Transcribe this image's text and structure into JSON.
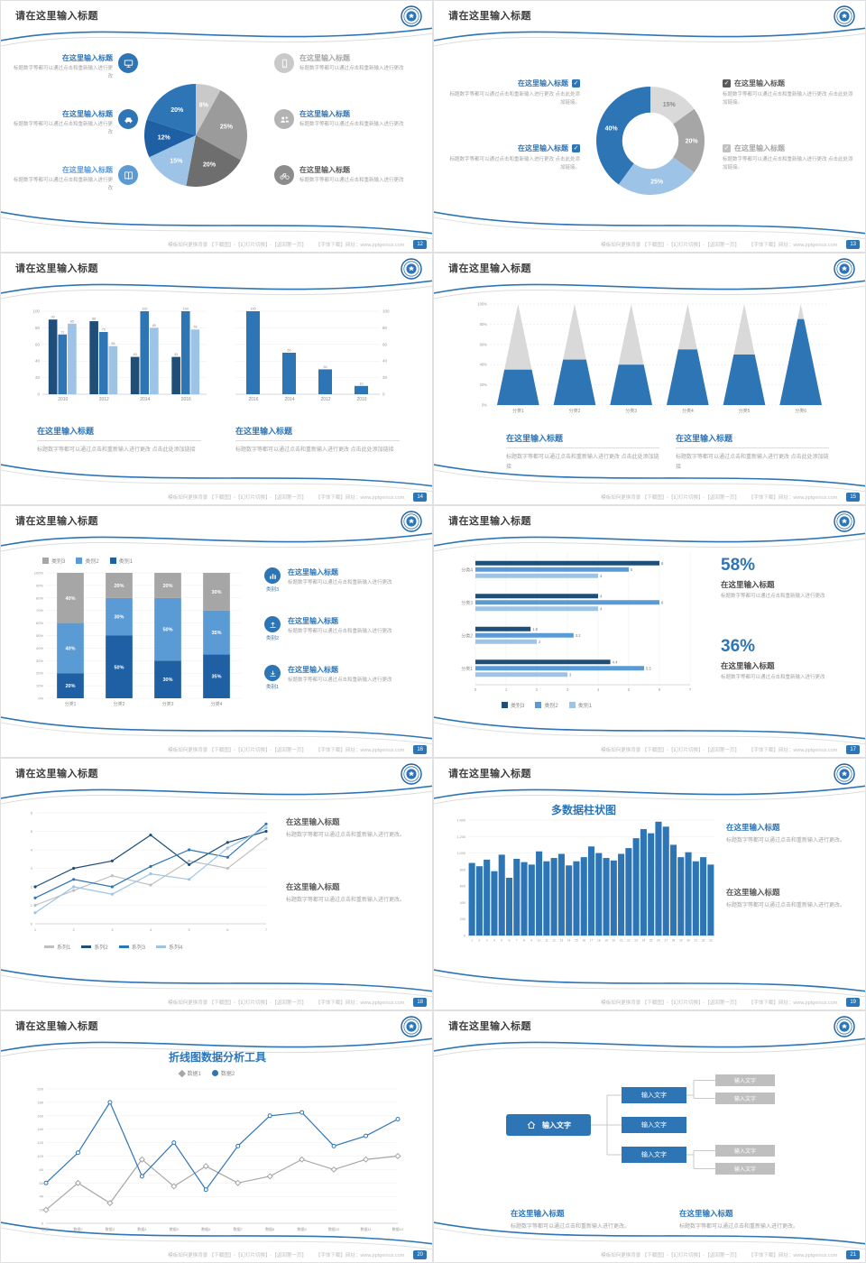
{
  "icons": {
    "check": "✓"
  },
  "footer": {
    "left": "模板如何更换背景 【下载图】-【幻灯片切换】-【返回第一页】",
    "right": "【字体下载】网址：www.pptgenius.com"
  },
  "slides": [
    {
      "page": "12",
      "title": "请在这里输入标题",
      "left_items": [
        {
          "heading": "在这里输入标题",
          "heading_color": "#2e75b6",
          "body": "标题数字等都可以通过点击和重新输入进行更改",
          "icon": "monitor",
          "icon_bg": "#2e75b6"
        },
        {
          "heading": "在这里输入标题",
          "heading_color": "#2e75b6",
          "body": "标题数字等都可以通过点击和重新输入进行更改",
          "icon": "car",
          "icon_bg": "#2e75b6"
        },
        {
          "heading": "在这里输入标题",
          "heading_color": "#5b9bd5",
          "body": "标题数字等都可以通过点击和重新输入进行更改",
          "icon": "book",
          "icon_bg": "#5b9bd5"
        }
      ],
      "right_items": [
        {
          "heading": "在这里输入标题",
          "heading_color": "#a6a6a6",
          "body": "标题数字等都可以通过点击和重新输入进行更改",
          "icon": "phone",
          "icon_bg": "#c9c9c9"
        },
        {
          "heading": "在这里输入标题",
          "heading_color": "#2e75b6",
          "body": "标题数字等都可以通过点击和重新输入进行更改",
          "icon": "people",
          "icon_bg": "#b3b3b3"
        },
        {
          "heading": "在这里输入标题",
          "heading_color": "#595959",
          "body": "标题数字等都可以通过点击和重新输入进行更改",
          "icon": "bike",
          "icon_bg": "#8c8c8c"
        }
      ],
      "chart_data": {
        "type": "pie",
        "values": [
          8,
          25,
          20,
          15,
          12,
          20
        ],
        "colors": [
          "#c9c9c9",
          "#9b9b9b",
          "#6e6e6e",
          "#9dc3e6",
          "#1f5fa3",
          "#2e75b6"
        ],
        "label_colors": [
          "#fff",
          "#fff",
          "#fff",
          "#fff",
          "#fff",
          "#fff"
        ]
      }
    },
    {
      "page": "13",
      "title": "请在这里输入标题",
      "left_items": [
        {
          "heading": "在这里输入标题",
          "heading_color": "#2e75b6",
          "check_color": "#2e75b6",
          "body": "标题数字等都可以通过点击和重新输入进行更改 点击此处添加链接。"
        },
        {
          "heading": "在这里输入标题",
          "heading_color": "#2e75b6",
          "check_color": "#2e75b6",
          "body": "标题数字等都可以通过点击和重新输入进行更改 点击此处添加链接。"
        }
      ],
      "right_items": [
        {
          "heading": "在这里输入标题",
          "heading_color": "#595959",
          "check_color": "#595959",
          "body": "标题数字等都可以通过点击和重新输入进行更改 点击此处添加链接。"
        },
        {
          "heading": "在这里输入标题",
          "heading_color": "#a6a6a6",
          "check_color": "#c0c0c0",
          "body": "标题数字等都可以通过点击和重新输入进行更改 点击此处添加链接。"
        }
      ],
      "chart_data": {
        "type": "donut",
        "values": [
          15,
          20,
          25,
          40
        ],
        "colors": [
          "#d9d9d9",
          "#a6a6a6",
          "#9dc3e6",
          "#2e75b6"
        ],
        "label_colors": [
          "#8a8a8a",
          "#fff",
          "#fff",
          "#fff"
        ]
      }
    },
    {
      "page": "14",
      "title": "请在这里输入标题",
      "chart_a": {
        "type": "grouped_bar",
        "categories": [
          "2010",
          "2012",
          "2014",
          "2016"
        ],
        "ymax": 100,
        "ystep": 20,
        "show_values": true,
        "series": [
          {
            "name": "系列1",
            "color": "#1f4e79",
            "values": [
              90,
              88,
              45,
              45
            ]
          },
          {
            "name": "系列2",
            "color": "#2e75b6",
            "values": [
              72,
              75,
              100,
              100
            ]
          },
          {
            "name": "系列3",
            "color": "#9dc3e6",
            "values": [
              85,
              58,
              80,
              78
            ]
          }
        ]
      },
      "chart_b": {
        "type": "grouped_bar",
        "categories": [
          "2016",
          "2014",
          "2012",
          "2010"
        ],
        "ymax": 100,
        "ystep": 20,
        "axis_side": "right",
        "show_values": true,
        "series": [
          {
            "name": "系列1",
            "color": "#2e75b6",
            "values": [
              100,
              50,
              30,
              10
            ]
          }
        ]
      },
      "blocks": [
        {
          "heading": "在这里输入标题",
          "body": "标题数字等都可以通过点击和重新输入进行更改 点击此处添加链接"
        },
        {
          "heading": "在这里输入标题",
          "body": "标题数字等都可以通过点击和重新输入进行更改 点击此处添加链接"
        }
      ]
    },
    {
      "page": "15",
      "title": "请在这里输入标题",
      "chart_data": {
        "type": "cone",
        "categories": [
          "分类1",
          "分类2",
          "分类3",
          "分类4",
          "分类5",
          "分类6"
        ],
        "fractions": [
          0.35,
          0.45,
          0.4,
          0.55,
          0.5,
          0.85
        ],
        "color": "#2e75b6",
        "gray": "#d9d9d9"
      },
      "blocks": [
        {
          "heading": "在这里输入标题",
          "body": "标题数字等都可以通过点击和重新输入进行更改 点击此处添加链接"
        },
        {
          "heading": "在这里输入标题",
          "body": "标题数字等都可以通过点击和重新输入进行更改 点击此处添加链接"
        }
      ]
    },
    {
      "page": "16",
      "title": "请在这里输入标题",
      "legend": [
        {
          "label": "类别3",
          "color": "#a6a6a6"
        },
        {
          "label": "类别2",
          "color": "#5b9bd5"
        },
        {
          "label": "类别1",
          "color": "#1f5fa3"
        }
      ],
      "chart_data": {
        "type": "stacked_bar",
        "categories": [
          "分类1",
          "分类2",
          "分类3",
          "分类4"
        ],
        "colors": [
          "#1f5fa3",
          "#5b9bd5",
          "#a6a6a6"
        ],
        "stacks": [
          [
            20,
            40,
            40
          ],
          [
            50,
            30,
            20
          ],
          [
            30,
            50,
            20
          ],
          [
            35,
            35,
            30
          ]
        ]
      },
      "rows": [
        {
          "icon": "chart",
          "tag": "类别3",
          "heading": "在这里输入标题",
          "body": "标题数字等都可以通过点击和重新输入进行更改"
        },
        {
          "icon": "upload",
          "tag": "类别2",
          "heading": "在这里输入标题",
          "body": "标题数字等都可以通过点击和重新输入进行更改"
        },
        {
          "icon": "download",
          "tag": "类别1",
          "heading": "在这里输入标题",
          "body": "标题数字等都可以通过点击和重新输入进行更改"
        }
      ]
    },
    {
      "page": "17",
      "title": "请在这里输入标题",
      "chart_data": {
        "type": "hbar",
        "xmax": 7,
        "colors": [
          "#1f4e79",
          "#5b9bd5",
          "#9dc3e6"
        ],
        "groups": [
          {
            "label": "分类4",
            "values": [
              6,
              5,
              4
            ]
          },
          {
            "label": "分类3",
            "values": [
              4,
              6,
              4
            ]
          },
          {
            "label": "分类2",
            "values": [
              1.8,
              3.2,
              2
            ]
          },
          {
            "label": "分类1",
            "values": [
              4.4,
              5.5,
              3
            ]
          }
        ]
      },
      "legend": [
        {
          "label": "类别3",
          "color": "#1f4e79"
        },
        {
          "label": "类别2",
          "color": "#5b9bd5"
        },
        {
          "label": "类别1",
          "color": "#9dc3e6"
        }
      ],
      "stats": [
        {
          "pct": "58%",
          "heading": "在这里输入标题",
          "body": "标题数字等都可以通过点击和重新输入进行更改"
        },
        {
          "pct": "36%",
          "heading": "在这里输入标题",
          "body": "标题数字等都可以通过点击和重新输入进行更改"
        }
      ]
    },
    {
      "page": "18",
      "title": "请在这里输入标题",
      "chart_data": {
        "type": "line",
        "x_labels": [
          "1",
          "2",
          "3",
          "4",
          "5",
          "6",
          "7"
        ],
        "ymax": 6,
        "ystep": 1,
        "series": [
          {
            "name": "系列1",
            "color": "#bfbfbf",
            "values": [
              1,
              1.8,
              2.6,
              2.1,
              3.4,
              3,
              4.6
            ]
          },
          {
            "name": "系列2",
            "color": "#1f4e79",
            "values": [
              2,
              3,
              3.4,
              4.8,
              3.2,
              4.4,
              5
            ]
          },
          {
            "name": "系列3",
            "color": "#2e75b6",
            "values": [
              1.4,
              2.4,
              2,
              3.1,
              4,
              3.6,
              5.4
            ]
          },
          {
            "name": "系列4",
            "color": "#9dc3e6",
            "values": [
              0.6,
              2,
              1.6,
              2.7,
              2.4,
              4.1,
              5.2
            ]
          }
        ]
      },
      "legend": [
        {
          "label": "系列1",
          "color": "#bfbfbf"
        },
        {
          "label": "系列2",
          "color": "#1f4e79"
        },
        {
          "label": "系列3",
          "color": "#2e75b6"
        },
        {
          "label": "系列4",
          "color": "#9dc3e6"
        }
      ],
      "blocks": [
        {
          "heading": "在这里输入标题",
          "heading_color": "#595959",
          "body": "标题数字等都可以通过点击和重新输入进行更改。"
        },
        {
          "heading": "在这里输入标题",
          "heading_color": "#595959",
          "body": "标题数字等都可以通过点击和重新输入进行更改。"
        }
      ]
    },
    {
      "page": "19",
      "title": "请在这里输入标题",
      "chart_title": "多数据柱状图",
      "chart_data": {
        "type": "column",
        "color": "#2e75b6",
        "ymax": 1400,
        "ystep": 200,
        "y_labels": [
          "0",
          "200",
          "400",
          "600",
          "800",
          "1,000",
          "1,200",
          "1,400"
        ],
        "x_labels": [
          "1",
          "2",
          "3",
          "4",
          "5",
          "6",
          "7",
          "8",
          "9",
          "10",
          "11",
          "12",
          "13",
          "14",
          "15",
          "16",
          "17",
          "18",
          "19",
          "20",
          "21",
          "22",
          "23",
          "24",
          "25",
          "26",
          "27",
          "28",
          "29",
          "30",
          "31",
          "32",
          "33"
        ],
        "values": [
          880,
          840,
          920,
          780,
          980,
          700,
          930,
          890,
          860,
          1020,
          900,
          940,
          990,
          850,
          900,
          950,
          1080,
          1000,
          940,
          910,
          990,
          1060,
          1180,
          1290,
          1240,
          1380,
          1320,
          1100,
          950,
          1010,
          900,
          950,
          860
        ]
      },
      "blocks": [
        {
          "heading": "在这里输入标题",
          "heading_color": "#2e75b6",
          "body": "标题数字等都可以通过点击和重新输入进行更改。"
        },
        {
          "heading": "在这里输入标题",
          "heading_color": "#595959",
          "body": "标题数字等都可以通过点击和重新输入进行更改。"
        }
      ]
    },
    {
      "page": "20",
      "title": "请在这里输入标题",
      "chart_title": "折线图数据分析工具",
      "legend": [
        {
          "label": "数据1",
          "color": "#a6a6a6"
        },
        {
          "label": "数据2",
          "color": "#2e75b6"
        }
      ],
      "chart_data": {
        "type": "line",
        "x_labels": [
          "数据1",
          "数据2",
          "数据3",
          "数据4",
          "数据5",
          "数据6",
          "数据7",
          "数据8",
          "数据9",
          "数据10",
          "数据11",
          "数据12"
        ],
        "ymax": 200,
        "ystep": 20,
        "series": [
          {
            "name": "数据1",
            "color": "#a6a6a6",
            "marker": "diamond",
            "values": [
              20,
              60,
              30,
              95,
              55,
              85,
              60,
              70,
              95,
              80,
              95,
              100
            ]
          },
          {
            "name": "数据2",
            "color": "#2e75b6",
            "marker": "circle",
            "values": [
              60,
              105,
              180,
              70,
              120,
              50,
              115,
              160,
              165,
              115,
              130,
              155
            ]
          }
        ]
      }
    },
    {
      "page": "21",
      "title": "请在这里输入标题",
      "home_icon": "home",
      "home_label": "输入文字",
      "blue_boxes": [
        "输入文字",
        "输入文字",
        "输入文字"
      ],
      "gray_boxes": [
        "输入文字",
        "输入文字",
        "输入文字",
        "输入文字"
      ],
      "blocks": [
        {
          "heading": "在这里输入标题",
          "body": "标题数字等都可以通过点击和重新输入进行更改。"
        },
        {
          "heading": "在这里输入标题",
          "body": "标题数字等都可以通过点击和重新输入进行更改。"
        }
      ]
    }
  ]
}
